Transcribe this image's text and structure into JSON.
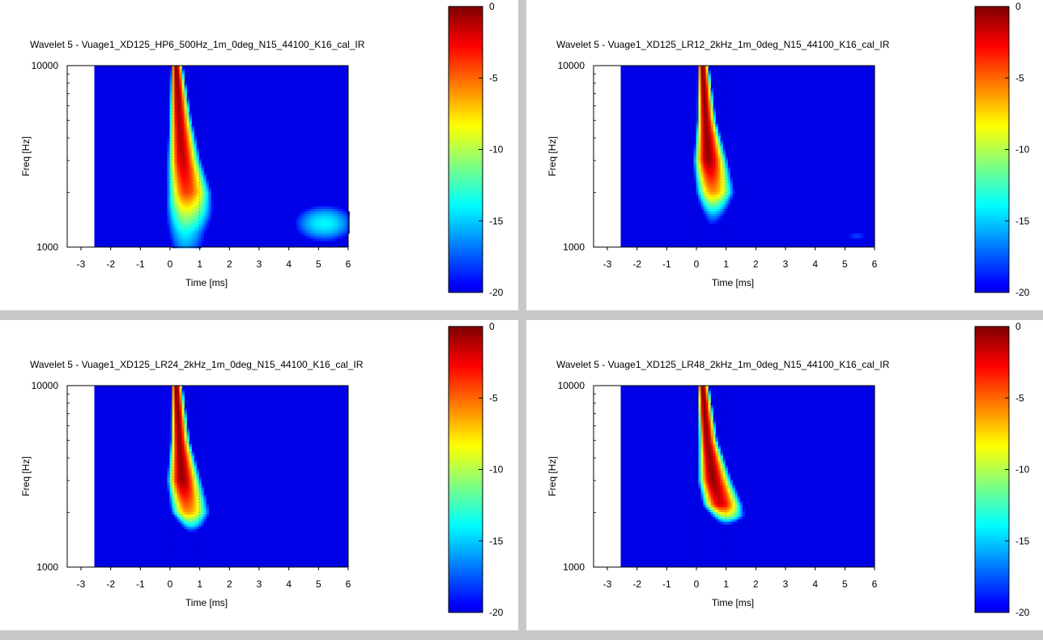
{
  "chart_data": [
    {
      "type": "heatmap",
      "title": "Wavelet 5 - Vuage1_XD125_HP6_500Hz_1m_0deg_N15_44100_K16_cal_IR",
      "xlabel": "Time [ms]",
      "ylabel": "Freq [Hz]",
      "xlim": [
        -3,
        6
      ],
      "ylim": [
        1000,
        10000
      ],
      "y_scale": "log",
      "x_ticks": [
        "-3",
        "-2",
        "-1",
        "0",
        "1",
        "2",
        "3",
        "4",
        "5",
        "6"
      ],
      "y_ticks": [
        "1000",
        "10000"
      ],
      "colorbar_range": [
        -20,
        0
      ],
      "colorbar_ticks": [
        "0",
        "-5",
        "-10",
        "-15",
        "-20"
      ],
      "data_start_ms": -2.55,
      "ridge": [
        {
          "freq": 10000,
          "peak_ms": 0.2,
          "half_width_ms": 0.15,
          "level_db": 0
        },
        {
          "freq": 5000,
          "peak_ms": 0.3,
          "half_width_ms": 0.3,
          "level_db": -1
        },
        {
          "freq": 3000,
          "peak_ms": 0.4,
          "half_width_ms": 0.45,
          "level_db": -1.5
        },
        {
          "freq": 2000,
          "peak_ms": 0.55,
          "half_width_ms": 0.65,
          "level_db": -4
        },
        {
          "freq": 1500,
          "peak_ms": 0.55,
          "half_width_ms": 0.85,
          "level_db": -10
        },
        {
          "freq": 1200,
          "peak_ms": 0.5,
          "half_width_ms": 0.9,
          "level_db": -14
        },
        {
          "freq": 1000,
          "peak_ms": 0.5,
          "half_width_ms": 0.9,
          "level_db": -16
        }
      ],
      "blobs": [
        {
          "time_ms": 5.2,
          "freq": 1350,
          "sigma_ms": 0.8,
          "sigma_decades": 0.08,
          "level_db": -14
        }
      ]
    },
    {
      "type": "heatmap",
      "title": "Wavelet 5 - Vuage1_XD125_LR12_2kHz_1m_0deg_N15_44100_K16_cal_IR",
      "xlabel": "Time [ms]",
      "ylabel": "Freq [Hz]",
      "xlim": [
        -3,
        6
      ],
      "ylim": [
        1000,
        10000
      ],
      "y_scale": "log",
      "x_ticks": [
        "-3",
        "-2",
        "-1",
        "0",
        "1",
        "2",
        "3",
        "4",
        "5",
        "6"
      ],
      "y_ticks": [
        "1000",
        "10000"
      ],
      "colorbar_range": [
        -20,
        0
      ],
      "colorbar_ticks": [
        "0",
        "-5",
        "-10",
        "-15",
        "-20"
      ],
      "data_start_ms": -2.55,
      "ridge": [
        {
          "freq": 10000,
          "peak_ms": 0.2,
          "half_width_ms": 0.15,
          "level_db": 0
        },
        {
          "freq": 5000,
          "peak_ms": 0.3,
          "half_width_ms": 0.25,
          "level_db": -0.5
        },
        {
          "freq": 3000,
          "peak_ms": 0.4,
          "half_width_ms": 0.45,
          "level_db": -0.5
        },
        {
          "freq": 2000,
          "peak_ms": 0.55,
          "half_width_ms": 0.6,
          "level_db": -6
        },
        {
          "freq": 1500,
          "peak_ms": 0.55,
          "half_width_ms": 0.6,
          "level_db": -16
        },
        {
          "freq": 1200,
          "peak_ms": 0.5,
          "half_width_ms": 0.5,
          "level_db": -22
        }
      ],
      "blobs": [
        {
          "time_ms": 5.4,
          "freq": 1150,
          "sigma_ms": 0.4,
          "sigma_decades": 0.03,
          "level_db": -18
        }
      ]
    },
    {
      "type": "heatmap",
      "title": "Wavelet 5 - Vuage1_XD125_LR24_2kHz_1m_0deg_N15_44100_K16_cal_IR",
      "xlabel": "Time [ms]",
      "ylabel": "Freq [Hz]",
      "xlim": [
        -3,
        6
      ],
      "ylim": [
        1000,
        10000
      ],
      "y_scale": "log",
      "x_ticks": [
        "-3",
        "-2",
        "-1",
        "0",
        "1",
        "2",
        "3",
        "4",
        "5",
        "6"
      ],
      "y_ticks": [
        "1000",
        "10000"
      ],
      "colorbar_range": [
        -20,
        0
      ],
      "colorbar_ticks": [
        "0",
        "-5",
        "-10",
        "-15",
        "-20"
      ],
      "data_start_ms": -2.55,
      "ridge": [
        {
          "freq": 10000,
          "peak_ms": 0.2,
          "half_width_ms": 0.15,
          "level_db": 0
        },
        {
          "freq": 5000,
          "peak_ms": 0.3,
          "half_width_ms": 0.25,
          "level_db": -0.5
        },
        {
          "freq": 3000,
          "peak_ms": 0.4,
          "half_width_ms": 0.45,
          "level_db": -0.5
        },
        {
          "freq": 2000,
          "peak_ms": 0.6,
          "half_width_ms": 0.6,
          "level_db": -6
        },
        {
          "freq": 1700,
          "peak_ms": 0.7,
          "half_width_ms": 0.55,
          "level_db": -14
        },
        {
          "freq": 1500,
          "peak_ms": 0.7,
          "half_width_ms": 0.5,
          "level_db": -22
        }
      ],
      "blobs": []
    },
    {
      "type": "heatmap",
      "title": "Wavelet 5 - Vuage1_XD125_LR48_2kHz_1m_0deg_N15_44100_K16_cal_IR",
      "xlabel": "Time [ms]",
      "ylabel": "Freq [Hz]",
      "xlim": [
        -3,
        6
      ],
      "ylim": [
        1000,
        10000
      ],
      "y_scale": "log",
      "x_ticks": [
        "-3",
        "-2",
        "-1",
        "0",
        "1",
        "2",
        "3",
        "4",
        "5",
        "6"
      ],
      "y_ticks": [
        "1000",
        "10000"
      ],
      "colorbar_range": [
        -20,
        0
      ],
      "colorbar_ticks": [
        "0",
        "-5",
        "-10",
        "-15",
        "-20"
      ],
      "data_start_ms": -2.55,
      "ridge": [
        {
          "freq": 10000,
          "peak_ms": 0.2,
          "half_width_ms": 0.15,
          "level_db": 0
        },
        {
          "freq": 5000,
          "peak_ms": 0.35,
          "half_width_ms": 0.25,
          "level_db": -0.5
        },
        {
          "freq": 3000,
          "peak_ms": 0.55,
          "half_width_ms": 0.45,
          "level_db": -0.5
        },
        {
          "freq": 2200,
          "peak_ms": 0.8,
          "half_width_ms": 0.55,
          "level_db": -2
        },
        {
          "freq": 1900,
          "peak_ms": 1.0,
          "half_width_ms": 0.6,
          "level_db": -10
        },
        {
          "freq": 1700,
          "peak_ms": 1.0,
          "half_width_ms": 0.55,
          "level_db": -20
        },
        {
          "freq": 1600,
          "peak_ms": 1.0,
          "half_width_ms": 0.5,
          "level_db": -26
        }
      ],
      "blobs": []
    }
  ],
  "colors": {
    "background": "#c8c8c8",
    "panel": "#ffffff",
    "colormap": "jet"
  }
}
